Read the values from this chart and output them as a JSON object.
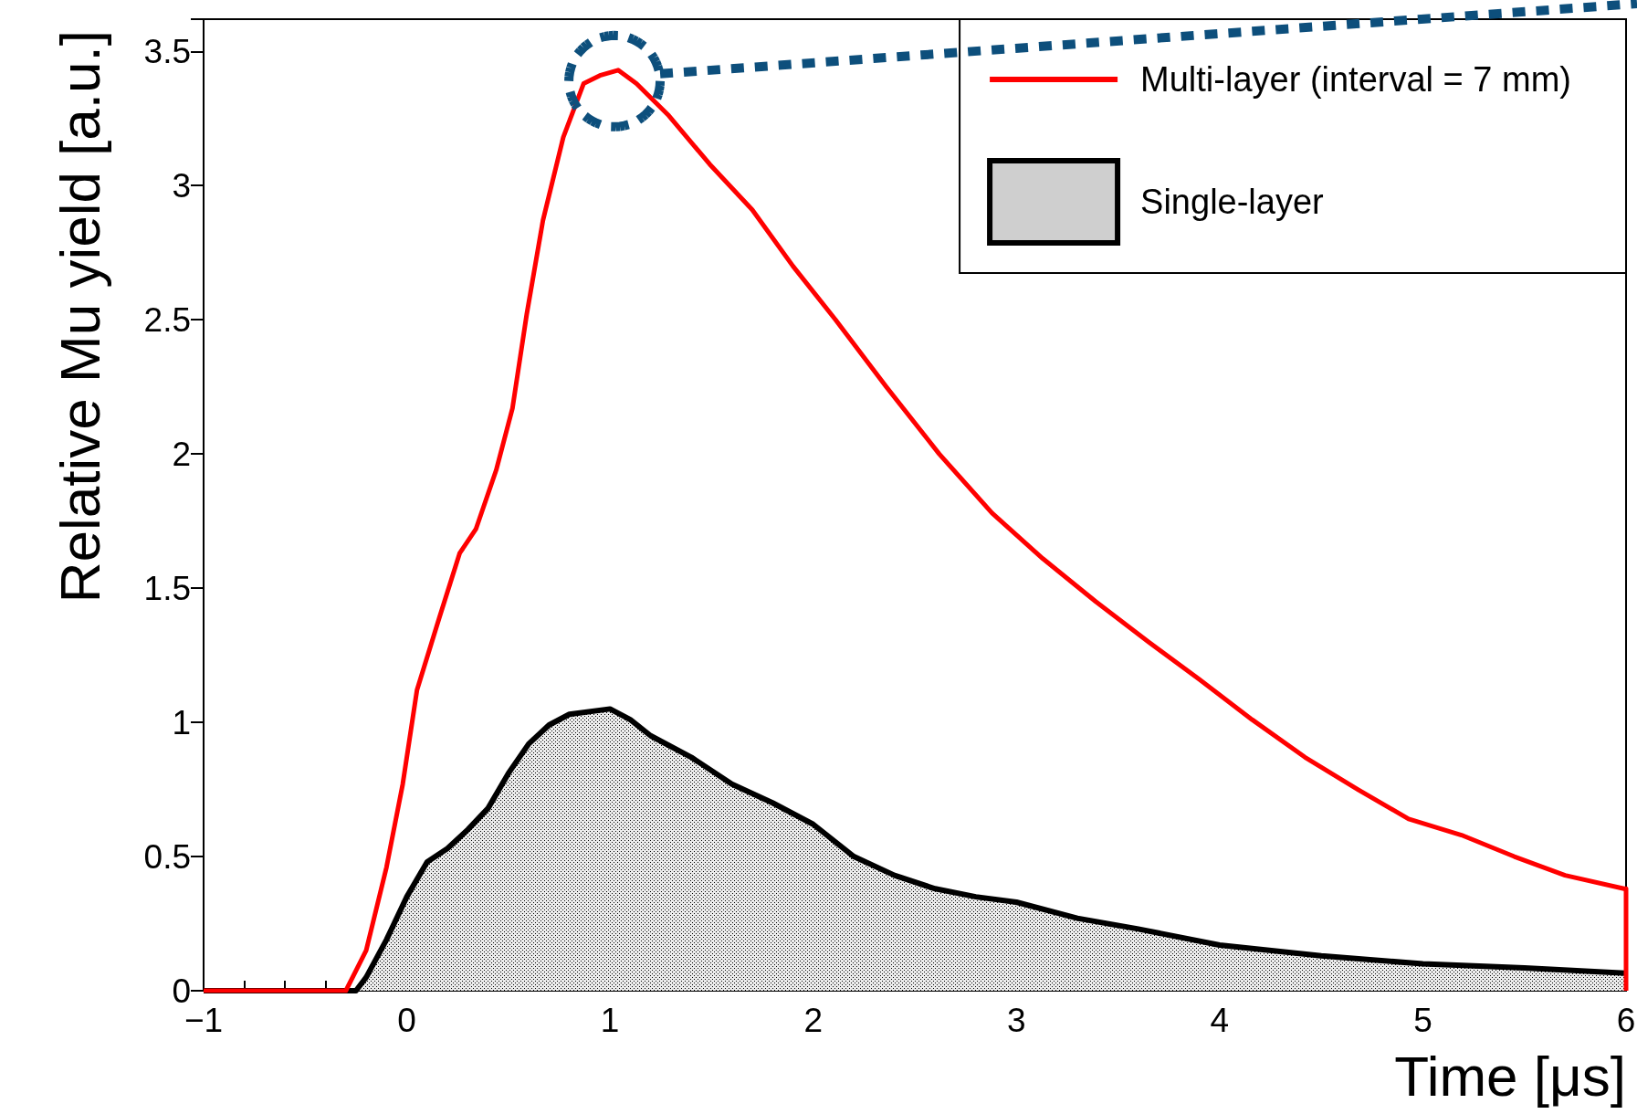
{
  "chart_data": {
    "type": "line",
    "xlabel": "Time [μs]",
    "ylabel": "Relative Mu yield [a.u.]",
    "xlim": [
      -1,
      6
    ],
    "ylim": [
      0,
      3.62
    ],
    "xticks": [
      {
        "value": -1,
        "label": "−1"
      },
      0,
      1,
      2,
      3,
      4,
      5,
      6
    ],
    "yticks": [
      0,
      0.5,
      1,
      1.5,
      2,
      2.5,
      3,
      3.5
    ],
    "grid": false,
    "legend": "top right",
    "marker": "none",
    "line_style": "solid",
    "series": [
      {
        "name": "Multi-layer (interval = 7 mm)",
        "type": "line",
        "color": "#ff0000",
        "x": [
          -1,
          -0.3,
          -0.2,
          -0.1,
          -0.02,
          0.05,
          0.16,
          0.26,
          0.34,
          0.44,
          0.52,
          0.59,
          0.67,
          0.77,
          0.87,
          0.95,
          1.04,
          1.13,
          1.29,
          1.49,
          1.7,
          1.9,
          2.11,
          2.36,
          2.62,
          2.88,
          3.13,
          3.39,
          3.65,
          3.9,
          4.16,
          4.42,
          4.68,
          4.93,
          5.19,
          5.45,
          5.7,
          5.99,
          6,
          6
        ],
        "values": [
          0,
          0,
          0.15,
          0.46,
          0.77,
          1.12,
          1.39,
          1.63,
          1.72,
          1.94,
          2.17,
          2.52,
          2.87,
          3.18,
          3.38,
          3.41,
          3.43,
          3.38,
          3.26,
          3.08,
          2.91,
          2.7,
          2.5,
          2.25,
          2.0,
          1.78,
          1.61,
          1.45,
          1.3,
          1.16,
          1.01,
          0.87,
          0.75,
          0.64,
          0.58,
          0.5,
          0.43,
          0.38,
          0.38,
          0
        ]
      },
      {
        "name": "Single-layer",
        "type": "area",
        "color": "#000000",
        "x": [
          -1,
          -0.25,
          -0.2,
          -0.1,
          0,
          0.1,
          0.2,
          0.3,
          0.4,
          0.5,
          0.6,
          0.7,
          0.8,
          1.0,
          1.1,
          1.2,
          1.4,
          1.6,
          1.8,
          2.0,
          2.2,
          2.4,
          2.6,
          2.8,
          3.0,
          3.3,
          3.6,
          4.0,
          4.5,
          5.0,
          5.5,
          6.0
        ],
        "values": [
          0,
          0,
          0.05,
          0.19,
          0.35,
          0.48,
          0.53,
          0.6,
          0.68,
          0.81,
          0.92,
          0.99,
          1.03,
          1.05,
          1.01,
          0.95,
          0.87,
          0.77,
          0.7,
          0.62,
          0.5,
          0.43,
          0.38,
          0.35,
          0.33,
          0.27,
          0.23,
          0.17,
          0.13,
          0.1,
          0.085,
          0.065
        ]
      }
    ]
  }
}
